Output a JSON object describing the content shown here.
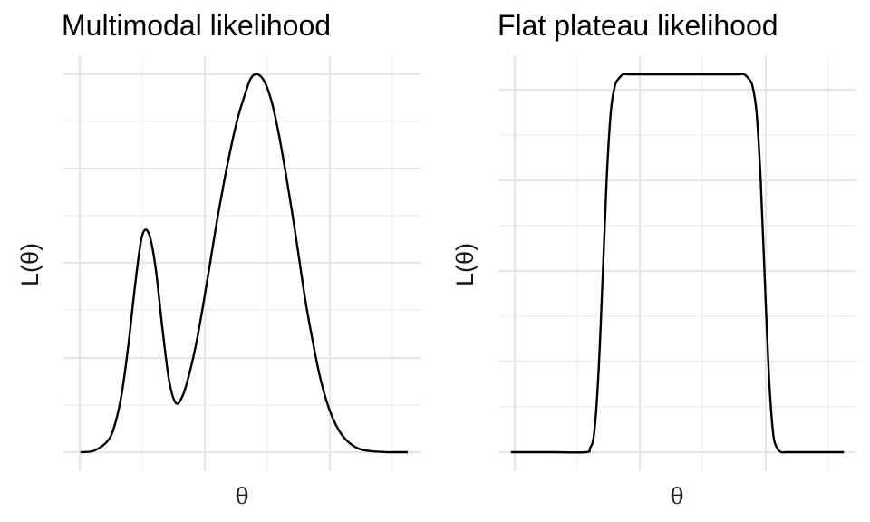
{
  "colors": {
    "background": "#ffffff",
    "grid": "#e6e6e6",
    "line": "#000000"
  },
  "chart_data": [
    {
      "type": "line",
      "title": "Multimodal likelihood",
      "xlabel": "θ",
      "ylabel": "L(θ)",
      "ticks_labeled": false,
      "grid": true,
      "x_range": [
        -4.5,
        6
      ],
      "y_range": [
        0,
        1
      ],
      "series": [
        {
          "x": [
            -4.0,
            -3.6,
            -3.2,
            -3.0,
            -2.8,
            -2.6,
            -2.4,
            -2.2,
            -2.0,
            -1.8,
            -1.6,
            -1.4,
            -1.2,
            -1.0,
            -0.8,
            -0.6,
            -0.4,
            -0.2,
            0.0,
            0.2,
            0.4,
            0.6,
            0.8,
            1.0,
            1.2,
            1.4,
            1.6,
            1.8,
            2.0,
            2.2,
            2.4,
            2.6,
            2.8,
            3.0,
            3.2,
            3.4,
            3.6,
            3.8,
            4.0,
            4.2,
            4.4,
            4.6,
            4.8,
            5.0,
            5.2,
            5.4,
            5.6
          ],
          "y": [
            0.0,
            0.004,
            0.03,
            0.07,
            0.15,
            0.28,
            0.44,
            0.57,
            0.58,
            0.49,
            0.33,
            0.19,
            0.13,
            0.15,
            0.21,
            0.29,
            0.39,
            0.5,
            0.61,
            0.71,
            0.8,
            0.88,
            0.94,
            0.99,
            1.0,
            0.98,
            0.93,
            0.85,
            0.75,
            0.64,
            0.52,
            0.4,
            0.3,
            0.21,
            0.14,
            0.09,
            0.055,
            0.032,
            0.017,
            0.008,
            0.004,
            0.002,
            0.001,
            0.0,
            0.0,
            0.0,
            0.0
          ]
        }
      ]
    },
    {
      "type": "line",
      "title": "Flat plateau likelihood",
      "xlabel": "θ",
      "ylabel": "L(θ)",
      "ticks_labeled": false,
      "grid": true,
      "x_range": [
        -4.3,
        4.3
      ],
      "y_range": [
        0,
        1
      ],
      "series": [
        {
          "x": [
            -4.0,
            -3.0,
            -2.2,
            -2.1,
            -2.0,
            -1.9,
            -1.8,
            -1.7,
            -1.6,
            -1.5,
            -1.4,
            -1.3,
            -1.2,
            -1.1,
            -1.0,
            -0.8,
            0.0,
            1.2,
            1.4,
            1.5,
            1.6,
            1.7,
            1.8,
            1.9,
            2.0,
            2.1,
            2.2,
            2.3,
            2.4,
            2.5,
            2.6,
            2.8,
            3.5,
            4.0
          ],
          "y": [
            0.0,
            0.0,
            0.0,
            0.01,
            0.05,
            0.2,
            0.45,
            0.72,
            0.9,
            0.97,
            0.99,
            1.0,
            1.0,
            1.0,
            1.0,
            1.0,
            1.0,
            1.0,
            1.0,
            1.0,
            1.0,
            0.99,
            0.97,
            0.9,
            0.72,
            0.45,
            0.2,
            0.05,
            0.01,
            0.0,
            0.0,
            0.0,
            0.0,
            0.0
          ]
        }
      ]
    }
  ]
}
